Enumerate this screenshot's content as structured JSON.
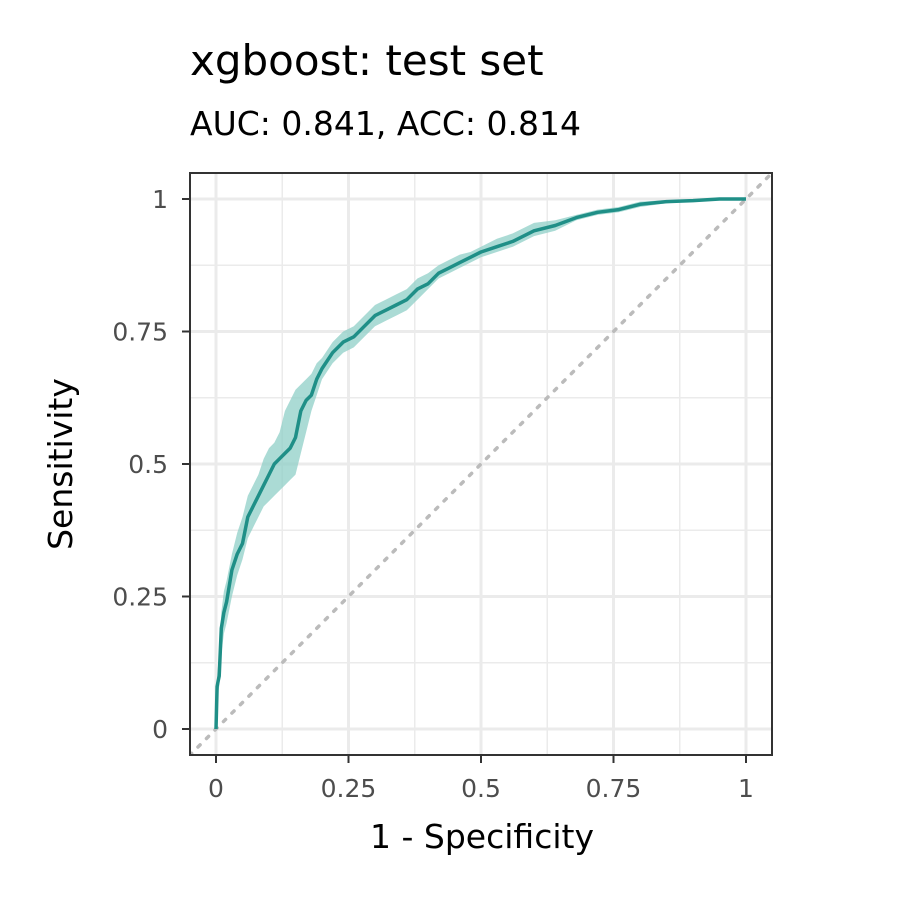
{
  "chart_data": {
    "type": "line",
    "title": "xgboost: test set",
    "subtitle": "AUC: 0.841, ACC: 0.814",
    "xlabel": "1 - Specificity",
    "ylabel": "Sensitivity",
    "xlim": [
      0,
      1
    ],
    "ylim": [
      0,
      1
    ],
    "x_ticks": [
      0,
      0.25,
      0.5,
      0.75,
      1
    ],
    "x_tick_labels": [
      "0",
      "0.25",
      "0.5",
      "0.75",
      "1"
    ],
    "y_ticks": [
      0,
      0.25,
      0.5,
      0.75,
      1
    ],
    "y_tick_labels": [
      "0",
      "0.25",
      "0.5",
      "0.75",
      "1"
    ],
    "grid": true,
    "colors": {
      "curve": "#1f8f87",
      "band": "#8fcfc7",
      "reference": "#bbbbbb",
      "grid": "#ebebeb",
      "panel_border": "#333333"
    },
    "series": [
      {
        "type": "line",
        "x": [
          0,
          0.002,
          0.004,
          0.006,
          0.01,
          0.015,
          0.02,
          0.03,
          0.04,
          0.05,
          0.06,
          0.07,
          0.08,
          0.09,
          0.1,
          0.11,
          0.12,
          0.13,
          0.14,
          0.15,
          0.16,
          0.17,
          0.18,
          0.19,
          0.2,
          0.22,
          0.24,
          0.26,
          0.28,
          0.3,
          0.32,
          0.34,
          0.36,
          0.38,
          0.4,
          0.42,
          0.44,
          0.46,
          0.48,
          0.5,
          0.53,
          0.56,
          0.6,
          0.64,
          0.68,
          0.72,
          0.76,
          0.8,
          0.85,
          0.9,
          0.95,
          1.0
        ],
        "y": [
          0.0,
          0.08,
          0.09,
          0.1,
          0.19,
          0.22,
          0.24,
          0.3,
          0.33,
          0.35,
          0.4,
          0.42,
          0.44,
          0.46,
          0.48,
          0.5,
          0.51,
          0.52,
          0.53,
          0.55,
          0.6,
          0.62,
          0.63,
          0.66,
          0.68,
          0.71,
          0.73,
          0.74,
          0.76,
          0.78,
          0.79,
          0.8,
          0.81,
          0.83,
          0.84,
          0.86,
          0.87,
          0.88,
          0.89,
          0.9,
          0.91,
          0.92,
          0.94,
          0.95,
          0.965,
          0.975,
          0.98,
          0.99,
          0.995,
          0.997,
          1.0,
          1.0
        ]
      },
      {
        "type": "band",
        "x": [
          0,
          0.002,
          0.004,
          0.006,
          0.01,
          0.015,
          0.02,
          0.03,
          0.04,
          0.05,
          0.06,
          0.07,
          0.08,
          0.09,
          0.1,
          0.11,
          0.12,
          0.13,
          0.14,
          0.15,
          0.16,
          0.17,
          0.18,
          0.19,
          0.2,
          0.22,
          0.24,
          0.26,
          0.28,
          0.3,
          0.32,
          0.34,
          0.36,
          0.38,
          0.4,
          0.42,
          0.44,
          0.46,
          0.48,
          0.5,
          0.53,
          0.56,
          0.6,
          0.64,
          0.68,
          0.72,
          0.76,
          0.8,
          0.85,
          0.9,
          0.95,
          1.0
        ],
        "lower": [
          0.0,
          0.06,
          0.07,
          0.08,
          0.14,
          0.18,
          0.2,
          0.25,
          0.29,
          0.32,
          0.36,
          0.38,
          0.4,
          0.42,
          0.43,
          0.44,
          0.45,
          0.46,
          0.47,
          0.48,
          0.52,
          0.56,
          0.6,
          0.63,
          0.66,
          0.69,
          0.71,
          0.72,
          0.74,
          0.76,
          0.77,
          0.78,
          0.79,
          0.81,
          0.83,
          0.85,
          0.86,
          0.87,
          0.88,
          0.89,
          0.9,
          0.91,
          0.93,
          0.94,
          0.96,
          0.97,
          0.975,
          0.985,
          0.992,
          0.995,
          0.999,
          1.0
        ],
        "upper": [
          0.02,
          0.1,
          0.12,
          0.14,
          0.22,
          0.26,
          0.28,
          0.33,
          0.37,
          0.4,
          0.44,
          0.46,
          0.48,
          0.51,
          0.53,
          0.54,
          0.56,
          0.6,
          0.62,
          0.64,
          0.65,
          0.66,
          0.67,
          0.69,
          0.7,
          0.73,
          0.75,
          0.76,
          0.78,
          0.8,
          0.81,
          0.82,
          0.83,
          0.85,
          0.86,
          0.875,
          0.885,
          0.895,
          0.9,
          0.91,
          0.925,
          0.935,
          0.955,
          0.96,
          0.97,
          0.98,
          0.985,
          0.995,
          0.998,
          0.999,
          1.0,
          1.0
        ]
      },
      {
        "type": "reference",
        "x": [
          -0.05,
          1.05
        ],
        "y": [
          -0.05,
          1.05
        ]
      }
    ]
  }
}
